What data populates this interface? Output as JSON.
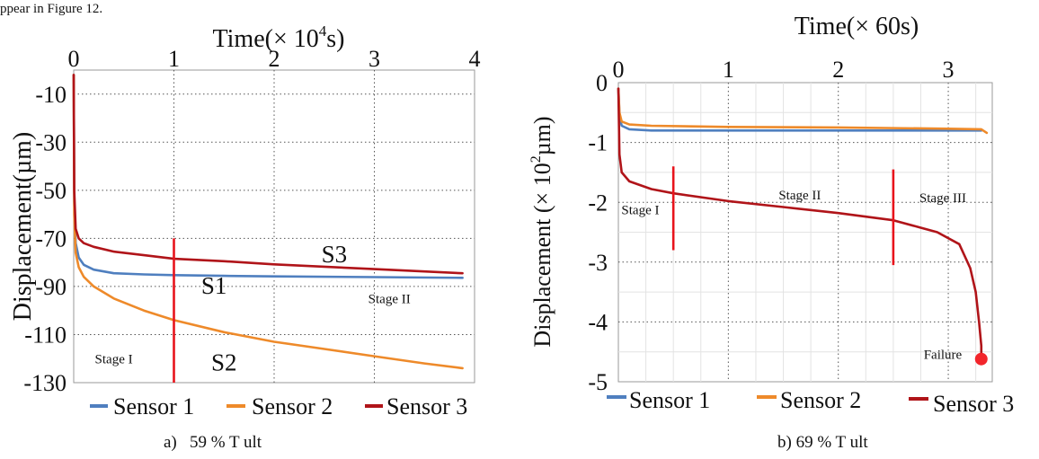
{
  "header_text": "ppear in Figure 12.",
  "chart_data": [
    {
      "type": "line",
      "caption": "a)   59 % T ult",
      "xlabel_prefix": "Time",
      "xlabel_unit": "(× 10",
      "xlabel_exp": "4",
      "xlabel_suffix": "s)",
      "ylabel": "Displacement(µm)",
      "xlim": [
        0,
        4
      ],
      "ylim": [
        -130,
        0
      ],
      "xticks": [
        0,
        1,
        2,
        3,
        4
      ],
      "xtick_labels": [
        "0",
        "1",
        "2",
        "3",
        "4"
      ],
      "yticks": [
        -10,
        -30,
        -50,
        -70,
        -90,
        -110,
        -130
      ],
      "ytick_labels": [
        "-10",
        "-30",
        "-50",
        "-70",
        "-90",
        "-110",
        "-130"
      ],
      "grid": true,
      "series": [
        {
          "name": "Sensor 1",
          "color": "#4f7fbf",
          "x": [
            0,
            0.005,
            0.02,
            0.05,
            0.1,
            0.2,
            0.4,
            0.7,
            1.0,
            1.5,
            2.0,
            3.0,
            3.88
          ],
          "y": [
            -2,
            -55,
            -72,
            -78,
            -81,
            -83,
            -84.5,
            -85,
            -85.3,
            -85.6,
            -85.8,
            -86.1,
            -86.4
          ]
        },
        {
          "name": "Sensor 2",
          "color": "#ee8a2a",
          "x": [
            0,
            0.005,
            0.02,
            0.05,
            0.1,
            0.2,
            0.4,
            0.7,
            1.0,
            1.5,
            2.0,
            2.5,
            3.0,
            3.5,
            3.88
          ],
          "y": [
            -2,
            -60,
            -76,
            -82,
            -86,
            -90,
            -95,
            -100,
            -104,
            -109,
            -113,
            -116,
            -119,
            -122,
            -124
          ]
        },
        {
          "name": "Sensor 3",
          "color": "#b01419",
          "x": [
            0,
            0.005,
            0.02,
            0.05,
            0.1,
            0.2,
            0.4,
            0.7,
            1.0,
            1.5,
            2.0,
            3.0,
            3.88
          ],
          "y": [
            -2,
            -50,
            -66,
            -70,
            -72,
            -73.5,
            -75.5,
            -77,
            -78.5,
            -79.5,
            -80.8,
            -82.8,
            -84.5
          ]
        }
      ],
      "annotations": {
        "stage_line": {
          "x": 1.0,
          "y_from": -70,
          "y_to": -130,
          "color": "#e8141c"
        },
        "labels": [
          {
            "text": "S3",
            "x": 2.6,
            "y": -80,
            "size": "large"
          },
          {
            "text": "S1",
            "x": 1.4,
            "y": -93,
            "size": "large"
          },
          {
            "text": "S2",
            "x": 1.5,
            "y": -125,
            "size": "large"
          },
          {
            "text": "Stage II",
            "x": 3.15,
            "y": -97,
            "size": "small"
          },
          {
            "text": "Stage I",
            "x": 0.4,
            "y": -122,
            "size": "small"
          }
        ]
      }
    },
    {
      "type": "line",
      "caption": "b) 69 % T ult",
      "xlabel_prefix": "Time",
      "xlabel_unit": "(× 60s)",
      "ylabel_prefix": "Displacement (× 10",
      "ylabel_exp": "2",
      "ylabel_suffix": "µm)",
      "xlim": [
        0,
        3.4
      ],
      "ylim": [
        -5,
        0
      ],
      "xticks": [
        0,
        1,
        2,
        3
      ],
      "xtick_labels": [
        "0",
        "1",
        "2",
        "3"
      ],
      "yticks": [
        0,
        -1,
        -2,
        -3,
        -4,
        -5
      ],
      "ytick_labels": [
        "0",
        "-1",
        "-2",
        "-3",
        "-4",
        "-5"
      ],
      "grid": true,
      "series": [
        {
          "name": "Sensor 1",
          "color": "#4f7fbf",
          "x": [
            0,
            0.01,
            0.03,
            0.1,
            0.3,
            1.0,
            2.0,
            3.0,
            3.3
          ],
          "y": [
            -0.1,
            -0.55,
            -0.72,
            -0.78,
            -0.8,
            -0.8,
            -0.8,
            -0.8,
            -0.8
          ]
        },
        {
          "name": "Sensor 2",
          "color": "#ee8a2a",
          "x": [
            0,
            0.01,
            0.03,
            0.1,
            0.3,
            1.0,
            2.0,
            3.0,
            3.3,
            3.35
          ],
          "y": [
            -0.1,
            -0.5,
            -0.65,
            -0.7,
            -0.72,
            -0.74,
            -0.75,
            -0.77,
            -0.78,
            -0.84
          ]
        },
        {
          "name": "Sensor 3",
          "color": "#b01419",
          "x": [
            0,
            0.01,
            0.03,
            0.1,
            0.3,
            0.5,
            1.0,
            1.5,
            2.0,
            2.5,
            2.9,
            3.1,
            3.2,
            3.25,
            3.28,
            3.3,
            3.3
          ],
          "y": [
            -0.1,
            -1.2,
            -1.5,
            -1.65,
            -1.78,
            -1.85,
            -1.98,
            -2.08,
            -2.18,
            -2.3,
            -2.5,
            -2.7,
            -3.1,
            -3.5,
            -4.0,
            -4.4,
            -4.65
          ]
        }
      ],
      "annotations": {
        "stage_lines": [
          {
            "x": 0.5,
            "y_from": -1.4,
            "y_to": -2.8,
            "color": "#e8141c"
          },
          {
            "x": 2.5,
            "y_from": -1.45,
            "y_to": -3.05,
            "color": "#e8141c"
          }
        ],
        "failure_point": {
          "x": 3.3,
          "y": -4.62,
          "color": "#f2252b"
        },
        "labels": [
          {
            "text": "Stage II",
            "x": 1.65,
            "y": -1.95,
            "size": "small"
          },
          {
            "text": "Stage III",
            "x": 2.95,
            "y": -2.0,
            "size": "small"
          },
          {
            "text": "Stage I",
            "x": 0.2,
            "y": -2.2,
            "size": "small"
          },
          {
            "text": "Failure",
            "x": 2.95,
            "y": -4.62,
            "size": "small"
          }
        ]
      }
    }
  ]
}
